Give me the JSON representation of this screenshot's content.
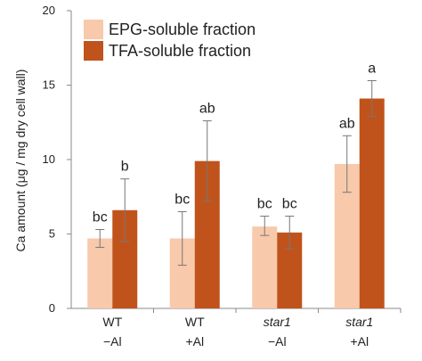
{
  "chart_data": {
    "type": "bar",
    "ylabel": "Ca amount  (μg / mg dry cell wall)",
    "ylim": [
      0,
      20
    ],
    "yticks": [
      0,
      5,
      10,
      15,
      20
    ],
    "grid": false,
    "legend_position": "top-left",
    "categories": [
      {
        "line1": "WT",
        "line2": "−Al",
        "italic": false
      },
      {
        "line1": "WT",
        "line2": "+Al",
        "italic": false
      },
      {
        "line1": "star1",
        "line2": "−Al",
        "italic": true
      },
      {
        "line1": "star1",
        "line2": "+Al",
        "italic": true
      }
    ],
    "series": [
      {
        "name": "EPG-soluble fraction",
        "color": "#f8c9ab",
        "values": [
          4.7,
          4.7,
          5.5,
          9.7
        ],
        "err_low": [
          4.1,
          2.9,
          4.9,
          7.8
        ],
        "err_high": [
          5.3,
          6.5,
          6.2,
          11.6
        ],
        "labels": [
          "bc",
          "bc",
          "bc",
          "ab"
        ]
      },
      {
        "name": "TFA-soluble fraction",
        "color": "#c0531c",
        "values": [
          6.6,
          9.9,
          5.1,
          14.1
        ],
        "err_low": [
          4.5,
          7.2,
          4.0,
          12.9
        ],
        "err_high": [
          8.7,
          12.6,
          6.2,
          15.3
        ],
        "labels": [
          "b",
          "ab",
          "bc",
          "a"
        ]
      }
    ]
  }
}
